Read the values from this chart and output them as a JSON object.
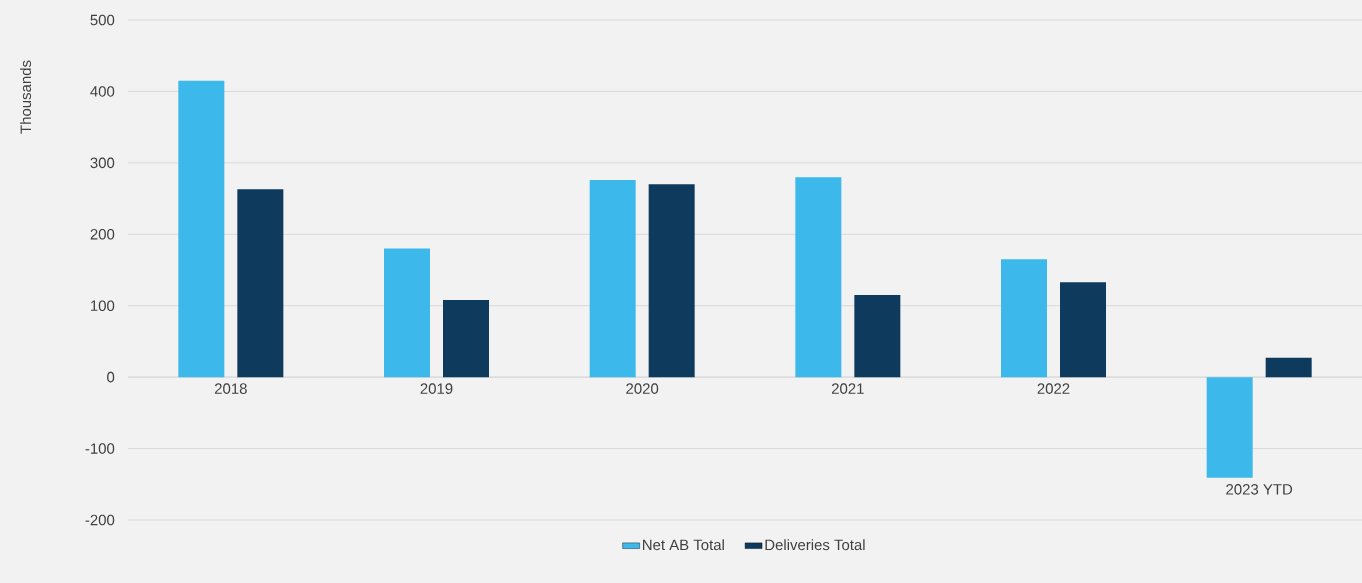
{
  "chart_data": {
    "type": "bar",
    "ylabel": "Thousands",
    "categories": [
      "2018",
      "2019",
      "2020",
      "2021",
      "2022",
      "2023 YTD"
    ],
    "series": [
      {
        "name": "Net AB Total",
        "color": "#3db8ea",
        "values": [
          415,
          180,
          276,
          280,
          165,
          -141
        ]
      },
      {
        "name": "Deliveries Total",
        "color": "#0e3a5e",
        "values": [
          263,
          108,
          270,
          115,
          133,
          27
        ]
      }
    ],
    "ylim": [
      -200,
      500
    ],
    "yticks": [
      -200,
      -100,
      0,
      100,
      200,
      300,
      400,
      500
    ],
    "grid": "y",
    "legend": "bottom"
  }
}
